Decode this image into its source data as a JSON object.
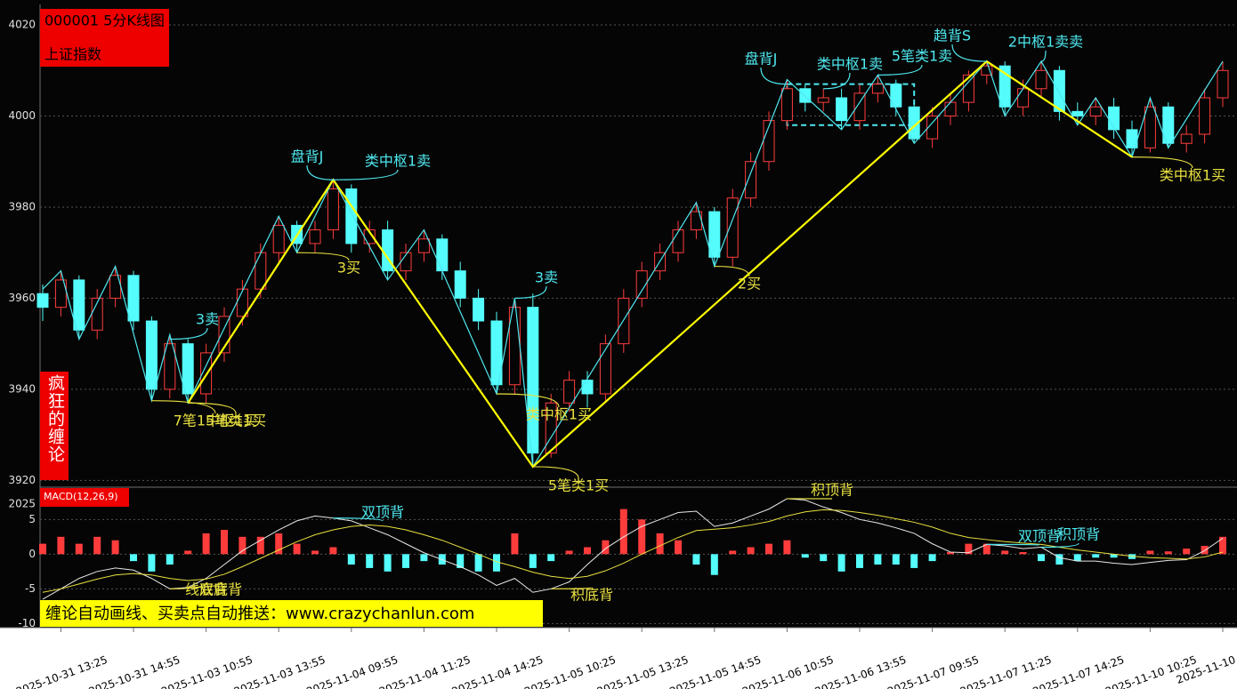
{
  "header": {
    "code_title": "000001 5分K线图",
    "index_name": "上证指数"
  },
  "side_label": "疯狂的缠论",
  "banner": "缠论自动画线、买卖点自动推送：www.crazychanlun.com",
  "chart_data": [
    {
      "type": "candlestick",
      "open": [
        3961,
        3958,
        3964,
        3953,
        3960,
        3965,
        3955,
        3940,
        3950,
        3939,
        3948,
        3956,
        3962,
        3970,
        3976,
        3972,
        3975,
        3984,
        3972,
        3975,
        3966,
        3970,
        3973,
        3966,
        3960,
        3955,
        3941,
        3958,
        3926,
        3937,
        3942,
        3939,
        3950,
        3960,
        3966,
        3970,
        3975,
        3979,
        3969,
        3982,
        3990,
        3999,
        4006,
        4003,
        4004,
        3999,
        4005,
        4007,
        4002,
        3995,
        4000,
        4003,
        4009,
        4011,
        4002,
        4006,
        4010,
        4001,
        4000,
        4002,
        3997,
        3993,
        4002,
        3994,
        3996,
        4004
      ],
      "high": [
        3963,
        3966,
        3965,
        3962,
        3967,
        3966,
        3956,
        3952,
        3951,
        3950,
        3958,
        3964,
        3972,
        3978,
        3977,
        3977,
        3986,
        3985,
        3977,
        3977,
        3972,
        3975,
        3974,
        3968,
        3962,
        3957,
        3960,
        3961,
        3939,
        3944,
        3944,
        3952,
        3962,
        3968,
        3972,
        3977,
        3981,
        3980,
        3984,
        3992,
        4001,
        4008,
        4007,
        4006,
        4006,
        4007,
        4009,
        4008,
        4003,
        4002,
        4005,
        4010,
        4012,
        4012,
        4008,
        4012,
        4011,
        4003,
        4004,
        4004,
        3999,
        4004,
        4003,
        3998,
        4006,
        4012
      ],
      "low": [
        3955,
        3956,
        3951,
        3951,
        3958,
        3953,
        3937.5,
        3938,
        3937,
        3937,
        3946,
        3954,
        3960,
        3968,
        3970,
        3970,
        3973,
        3970,
        3970,
        3964,
        3964,
        3968,
        3964,
        3958,
        3953,
        3939,
        3939,
        3923,
        3925,
        3935,
        3936,
        3937,
        3948,
        3958,
        3964,
        3968,
        3973,
        3967,
        3967,
        3980,
        3988,
        3997,
        4001,
        4001,
        3997,
        3997,
        4003,
        4000,
        3994,
        3993,
        3998,
        4001,
        4007,
        4000,
        4000,
        4004,
        3999,
        3998,
        3998,
        3995,
        3991,
        3992,
        3993,
        3992,
        3994,
        4002
      ],
      "close": [
        3958,
        3964,
        3953,
        3960,
        3965,
        3955,
        3940,
        3950,
        3939,
        3948,
        3956,
        3962,
        3970,
        3976,
        3972,
        3975,
        3984,
        3972,
        3975,
        3966,
        3970,
        3973,
        3966,
        3960,
        3955,
        3941,
        3958,
        3926,
        3937,
        3942,
        3939,
        3950,
        3960,
        3966,
        3970,
        3975,
        3979,
        3969,
        3982,
        3990,
        3999,
        4006,
        4003,
        4004,
        3999,
        4005,
        4007,
        4002,
        3995,
        4000,
        4003,
        4009,
        4011,
        4002,
        4006,
        4010,
        4001,
        4000,
        4002,
        3997,
        3993,
        4002,
        3994,
        3996,
        4004,
        4010
      ],
      "up_color": "#ff3c3c",
      "down_color": "#54fcfc",
      "ylim": [
        3918.5,
        4024.5
      ],
      "yticks": [
        3920,
        3940,
        3960,
        3980,
        4000,
        4020
      ],
      "grid": true,
      "strokes": {
        "color": "#4ee8f0",
        "x": [
          0,
          1,
          2,
          4,
          6,
          7,
          8,
          13,
          14,
          16,
          19,
          21,
          25,
          26,
          27,
          36,
          37,
          41,
          44,
          46,
          48,
          52,
          53,
          55,
          57,
          58,
          60,
          61,
          62,
          65
        ],
        "y": [
          3962,
          3966,
          3951,
          3967,
          3937.5,
          3952,
          3937,
          3978,
          3970,
          3986,
          3964,
          3975,
          3939,
          3960,
          3923,
          3981,
          3967,
          4008,
          3997,
          4009,
          3994,
          4012,
          4000,
          4012,
          3998,
          4004,
          3991,
          4004,
          3993,
          4012
        ]
      },
      "segments": {
        "color": "#ffff00",
        "x": [
          8,
          16,
          27,
          52,
          60
        ],
        "y": [
          3937,
          3986,
          3923,
          4012,
          3991
        ]
      },
      "hubs": [
        {
          "x": [
            41,
            48
          ],
          "y": [
            3998,
            4007
          ]
        }
      ],
      "hub_color": "#4ee8f0",
      "annotations": [
        {
          "text": "3卖",
          "x": 7,
          "y": 3951,
          "color": "#4ee8f0"
        },
        {
          "text": "盘背J",
          "x": 16,
          "y": 3986,
          "color": "#4ee8f0"
        },
        {
          "text": "类中枢1卖",
          "x": 16,
          "y": 3986,
          "color": "#4ee8f0"
        },
        {
          "text": "3卖",
          "x": 26,
          "y": 3960,
          "color": "#4ee8f0"
        },
        {
          "text": "盘背J",
          "x": 41,
          "y": 4007,
          "color": "#4ee8f0"
        },
        {
          "text": "类中枢1卖",
          "x": 43,
          "y": 4006,
          "color": "#4ee8f0"
        },
        {
          "text": "5笔类1卖",
          "x": 46,
          "y": 4009,
          "color": "#4ee8f0"
        },
        {
          "text": "趋背S",
          "x": 52,
          "y": 4012,
          "color": "#4ee8f0"
        },
        {
          "text": "2中枢1卖卖",
          "x": 55,
          "y": 4012,
          "color": "#4ee8f0"
        },
        {
          "text": "7笔1中枢1买",
          "x": 6,
          "y": 3937.5,
          "color": "#e8e040"
        },
        {
          "text": "5笔类1买",
          "x": 8,
          "y": 3937,
          "color": "#e8e040"
        },
        {
          "text": "3买",
          "x": 14,
          "y": 3970,
          "color": "#e8e040"
        },
        {
          "text": "类中枢1买",
          "x": 25,
          "y": 3939,
          "color": "#e8e040"
        },
        {
          "text": "5笔类1买",
          "x": 27,
          "y": 3923,
          "color": "#e8e040"
        },
        {
          "text": "2买",
          "x": 37,
          "y": 3967,
          "color": "#e8e040"
        },
        {
          "text": "类中枢1买",
          "x": 60,
          "y": 3991,
          "color": "#e8e040"
        }
      ]
    },
    {
      "type": "macd",
      "title": "MACD(12,26,9)",
      "axis_note": "2025",
      "categories": [
        null,
        "2025-10-31 13:25",
        null,
        null,
        null,
        "2025-10-31 14:55",
        null,
        null,
        null,
        "2025-11-03 10:55",
        null,
        null,
        null,
        "2025-11-03 13:55",
        null,
        null,
        null,
        "2025-11-04 09:55",
        null,
        null,
        null,
        "2025-11-04 11:25",
        null,
        null,
        null,
        "2025-11-04 14:25",
        null,
        null,
        null,
        "2025-11-05 10:25",
        null,
        null,
        null,
        "2025-11-05 13:25",
        null,
        null,
        null,
        "2025-11-05 14:55",
        null,
        null,
        null,
        "2025-11-06 10:55",
        null,
        null,
        null,
        "2025-11-06 13:55",
        null,
        null,
        null,
        "2025-11-07 09:55",
        null,
        null,
        null,
        "2025-11-07 11:25",
        null,
        null,
        null,
        "2025-11-07 14:25",
        null,
        null,
        null,
        "2025-11-10 10:25",
        null,
        null,
        null,
        "2025-11-10"
      ],
      "ylim": [
        -10.6,
        9.4
      ],
      "yticks": [
        -10,
        -5,
        0,
        5
      ],
      "grid": true,
      "series": [
        {
          "color": "#e8e8e8",
          "values": [
            -6.5,
            -5,
            -3.5,
            -2.5,
            -2,
            -2.3,
            -3.5,
            -5,
            -4.8,
            -3.5,
            -1.5,
            0.5,
            2,
            3.5,
            4.8,
            5.5,
            5.2,
            4.8,
            3.8,
            2.8,
            1.5,
            0.2,
            -0.8,
            -1.8,
            -3,
            -4.5,
            -3.5,
            -5.5,
            -5,
            -4,
            -1.5,
            0.8,
            2.5,
            4,
            5,
            6,
            6.2,
            4,
            4.5,
            5.5,
            6.5,
            8,
            7.8,
            6.8,
            6,
            5,
            4.5,
            3.8,
            3,
            1.5,
            0.3,
            0.2,
            1.4,
            1.2,
            0.8,
            1,
            -0.5,
            -1,
            -1,
            -1.3,
            -1.5,
            -1.2,
            -0.9,
            -0.8,
            0.5,
            2.3
          ]
        },
        {
          "color": "#e8e040",
          "values": [
            -5.5,
            -5,
            -4.3,
            -3.6,
            -3,
            -2.8,
            -3,
            -3.5,
            -3.8,
            -3.6,
            -2.9,
            -1.8,
            -0.6,
            0.6,
            1.8,
            2.8,
            3.5,
            4,
            4.2,
            4,
            3.5,
            2.8,
            2,
            1,
            0,
            -1.1,
            -1.8,
            -2.6,
            -3.2,
            -3.5,
            -3.2,
            -2.4,
            -1.3,
            0,
            1.2,
            2.4,
            3.4,
            3.6,
            3.8,
            4.2,
            4.7,
            5.5,
            6.1,
            6.4,
            6.3,
            6,
            5.6,
            5.1,
            4.6,
            3.9,
            3,
            2.4,
            2.1,
            1.8,
            1.6,
            1.4,
            1,
            0.6,
            0.3,
            0,
            -0.3,
            -0.5,
            -0.6,
            -0.7,
            -0.4,
            0.3
          ]
        }
      ],
      "histogram": {
        "up_color": "#ff3c3c",
        "down_color": "#54fcfc",
        "values": [
          1.5,
          2.5,
          1.5,
          2.5,
          2,
          -1,
          -2.5,
          -1.5,
          0.5,
          3,
          3.5,
          2.5,
          2.5,
          3,
          1.5,
          0.5,
          1,
          -1.5,
          -2,
          -2.5,
          -2,
          -1,
          -1.5,
          -2,
          -2.5,
          -2.5,
          3,
          -2,
          -1,
          0.5,
          1,
          2,
          6.5,
          5,
          3,
          2,
          -1.5,
          -3,
          0.5,
          1,
          1.5,
          2,
          -0.5,
          -1,
          -2.5,
          -2,
          -1.5,
          -1.5,
          -2,
          -1,
          0.3,
          1.5,
          1.5,
          0.5,
          0.3,
          -1,
          -1.5,
          -1,
          -0.5,
          -0.5,
          -0.7,
          0.5,
          0.4,
          0.8,
          1.2,
          2.5
        ]
      },
      "annotations": [
        {
          "text": "双顶背",
          "x": 16,
          "y": 5.2,
          "color": "#4ee8f0"
        },
        {
          "text": "线底背",
          "x": 7,
          "y": -5,
          "color": "#e8e040"
        },
        {
          "text": "双底背",
          "x": 8,
          "y": -4.8,
          "color": "#e8e040"
        },
        {
          "text": "积底背",
          "x": 28,
          "y": -5,
          "color": "#e8e040"
        },
        {
          "text": "积顶背",
          "x": 41,
          "y": 8,
          "color": "#e8e040"
        },
        {
          "text": "双顶背",
          "x": 52,
          "y": 1.4,
          "color": "#4ee8f0"
        },
        {
          "text": "积顶背",
          "x": 55,
          "y": 1,
          "color": "#4ee8f0"
        }
      ]
    }
  ]
}
